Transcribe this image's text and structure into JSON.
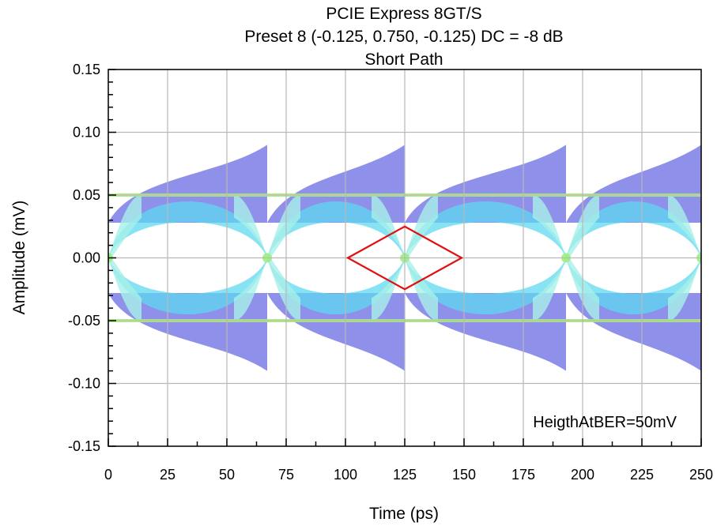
{
  "chart_data": {
    "type": "eye-diagram",
    "title_lines": [
      "PCIE Express 8GT/S",
      "Preset 8 (-0.125, 0.750, -0.125) DC = -8 dB",
      "Short Path"
    ],
    "xlabel": "Time (ps)",
    "ylabel": "Amplitude (mV)",
    "xlim": [
      0,
      250
    ],
    "ylim": [
      -0.15,
      0.15
    ],
    "x_ticks": [
      0,
      25,
      50,
      75,
      100,
      125,
      150,
      175,
      200,
      225,
      250
    ],
    "y_ticks": [
      -0.15,
      -0.1,
      -0.05,
      0.0,
      0.05,
      0.1,
      0.15
    ],
    "x_tick_labels": [
      "0",
      "25",
      "50",
      "75",
      "100",
      "125",
      "150",
      "175",
      "200",
      "225",
      "250"
    ],
    "y_tick_labels": [
      "-0.15",
      "-0.10",
      "-0.05",
      "0.00",
      "0.05",
      "0.10",
      "0.15"
    ],
    "grid": true,
    "crossing_times_ps": [
      0,
      67,
      125,
      193,
      250
    ],
    "outer_peak": 0.09,
    "outer_flat": 0.065,
    "inner_flat": 0.028,
    "rail_level": 0.05,
    "mask": {
      "color": "#e01010",
      "points": [
        [
          101,
          0.0
        ],
        [
          125,
          0.025
        ],
        [
          149,
          0.0
        ],
        [
          125,
          -0.025
        ]
      ]
    },
    "annotation": "HeigthAtBER=50mV",
    "density_colors": [
      "#7a7ce6",
      "#8fb4f2",
      "#5fd8f0",
      "#a8f0e8",
      "#9cf07c",
      "#f2e860"
    ]
  }
}
